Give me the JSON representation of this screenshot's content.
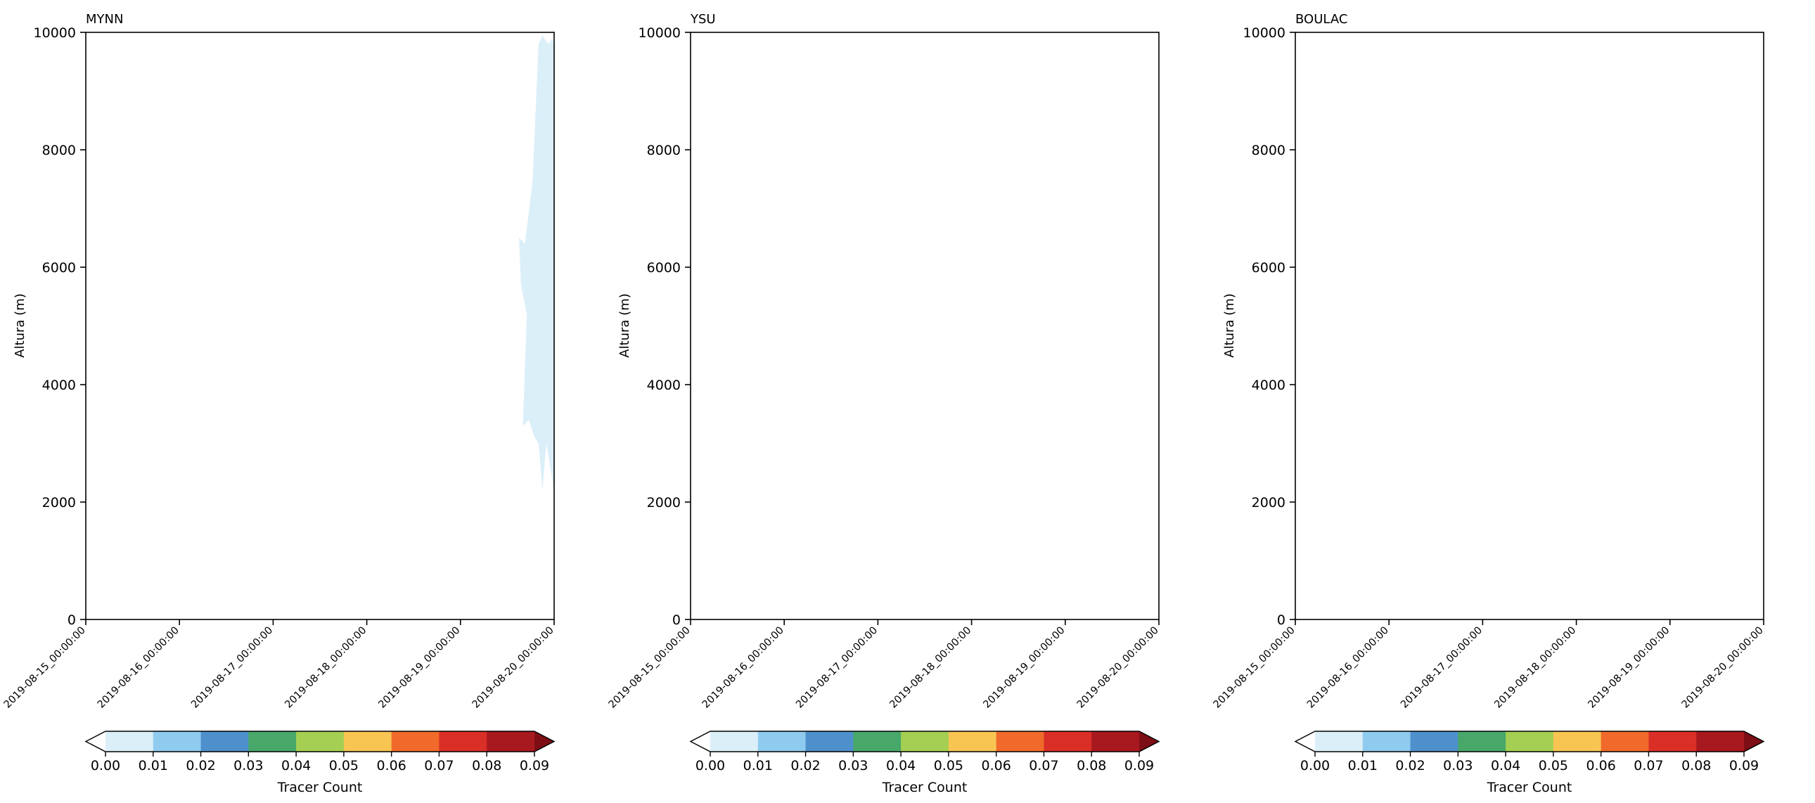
{
  "chart_data": [
    {
      "type": "contourf",
      "title": "MYNN",
      "xlabel": "",
      "ylabel": "Altura (m)",
      "ylim": [
        0,
        10000
      ],
      "yticks": [
        "0",
        "2000",
        "4000",
        "6000",
        "8000",
        "10000"
      ],
      "xticks": [
        "2019-08-15_00:00:00",
        "2019-08-16_00:00:00",
        "2019-08-17_00:00:00",
        "2019-08-18_00:00:00",
        "2019-08-19_00:00:00",
        "2019-08-20_00:00:00"
      ],
      "contours": [
        {
          "level": "0.00-0.01",
          "polygons": [
            [
              [
                "2019-08-19T18:30",
                7500
              ],
              [
                "2019-08-19T19:00",
                8300
              ],
              [
                "2019-08-19T20:00",
                9800
              ],
              [
                "2019-08-19T21:00",
                9950
              ],
              [
                "2019-08-19T22:30",
                9800
              ],
              [
                "2019-08-19T23:30",
                9900
              ],
              [
                "2019-08-20T00:00",
                9800
              ],
              [
                "2019-08-20T00:00",
                2200
              ],
              [
                "2019-08-19T22:00",
                3000
              ],
              [
                "2019-08-19T21:00",
                2200
              ],
              [
                "2019-08-19T20:00",
                3000
              ],
              [
                "2019-08-19T19:00",
                3100
              ],
              [
                "2019-08-19T17:30",
                3400
              ],
              [
                "2019-08-19T16:00",
                3300
              ],
              [
                "2019-08-19T16:30",
                4300
              ],
              [
                "2019-08-19T17:00",
                5200
              ],
              [
                "2019-08-19T15:30",
                5700
              ],
              [
                "2019-08-19T15:00",
                6500
              ],
              [
                "2019-08-19T16:30",
                6400
              ],
              [
                "2019-08-19T18:00",
                7200
              ]
            ]
          ]
        }
      ]
    },
    {
      "type": "contourf",
      "title": "YSU",
      "xlabel": "",
      "ylabel": "Altura (m)",
      "ylim": [
        0,
        10000
      ],
      "yticks": [
        "0",
        "2000",
        "4000",
        "6000",
        "8000",
        "10000"
      ],
      "xticks": [
        "2019-08-15_00:00:00",
        "2019-08-16_00:00:00",
        "2019-08-17_00:00:00",
        "2019-08-18_00:00:00",
        "2019-08-19_00:00:00",
        "2019-08-20_00:00:00"
      ],
      "contours": []
    },
    {
      "type": "contourf",
      "title": "BOULAC",
      "xlabel": "",
      "ylabel": "Altura (m)",
      "ylim": [
        0,
        10000
      ],
      "yticks": [
        "0",
        "2000",
        "4000",
        "6000",
        "8000",
        "10000"
      ],
      "xticks": [
        "2019-08-15_00:00:00",
        "2019-08-16_00:00:00",
        "2019-08-17_00:00:00",
        "2019-08-18_00:00:00",
        "2019-08-19_00:00:00",
        "2019-08-20_00:00:00"
      ],
      "contours": []
    }
  ],
  "colorbar": {
    "label": "Tracer Count",
    "tick_labels": [
      "0.00",
      "0.01",
      "0.02",
      "0.03",
      "0.04",
      "0.05",
      "0.06",
      "0.07",
      "0.08",
      "0.09"
    ],
    "colors": [
      "#dbeff9",
      "#8fcbee",
      "#4e90cc",
      "#48a86a",
      "#a4cf52",
      "#f8c553",
      "#f06a2b",
      "#d92f27",
      "#a8191f"
    ],
    "under_color": "#ffffff",
    "over_color": "#7d0e16"
  }
}
